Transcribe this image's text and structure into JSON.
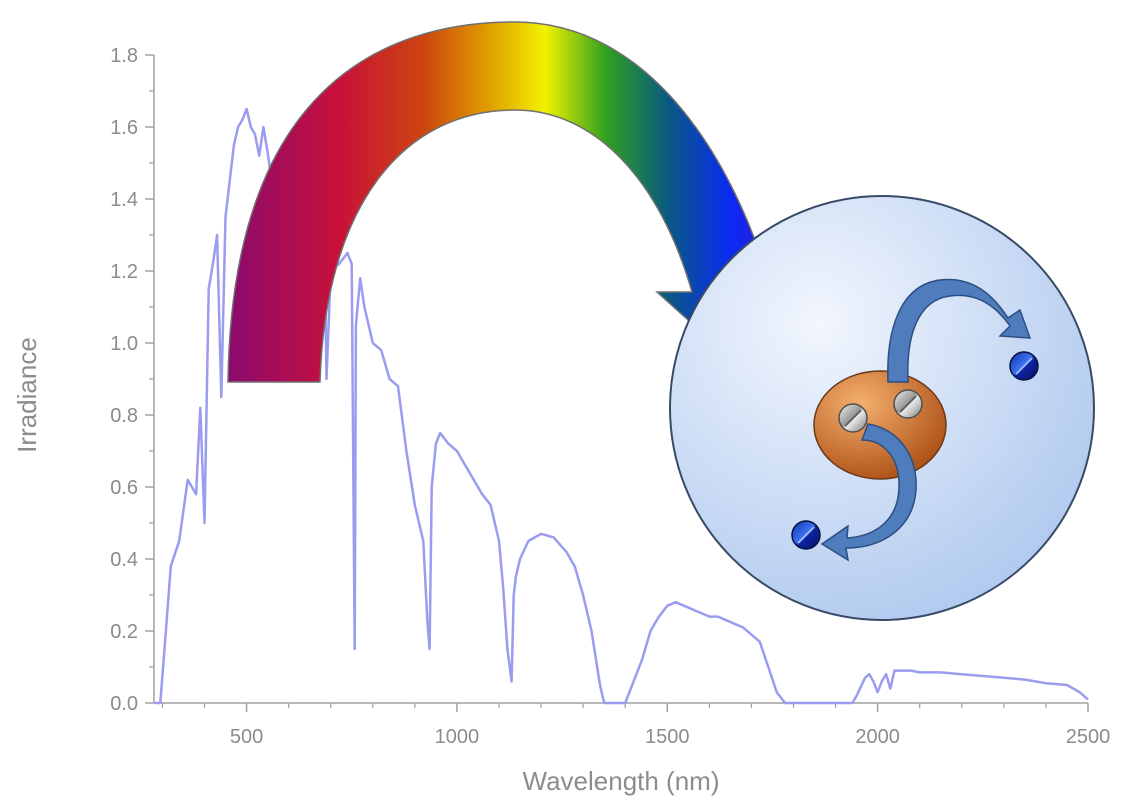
{
  "chart_data": {
    "type": "line",
    "title": "",
    "xlabel": "Wavelength (nm)",
    "ylabel": "Irradiance",
    "xlim": [
      280,
      2500
    ],
    "ylim": [
      0,
      1.8
    ],
    "x_ticks": [
      500,
      1000,
      1500,
      2000,
      2500
    ],
    "y_ticks": [
      "0.0",
      "0.2",
      "0.4",
      "0.6",
      "0.8",
      "1.0",
      "1.2",
      "1.4",
      "1.6",
      "1.8"
    ],
    "grid": false,
    "series": [
      {
        "color": "#9a9cf0",
        "x": [
          280,
          295,
          305,
          320,
          340,
          360,
          380,
          390,
          400,
          410,
          420,
          430,
          440,
          450,
          460,
          470,
          480,
          490,
          500,
          510,
          520,
          530,
          540,
          550,
          560,
          570,
          580,
          590,
          600,
          620,
          640,
          660,
          680,
          687,
          690,
          700,
          720,
          740,
          750,
          757,
          760,
          770,
          780,
          800,
          820,
          840,
          860,
          880,
          900,
          920,
          930,
          935,
          940,
          950,
          960,
          980,
          1000,
          1020,
          1040,
          1060,
          1080,
          1100,
          1110,
          1120,
          1130,
          1135,
          1140,
          1150,
          1170,
          1200,
          1230,
          1260,
          1280,
          1300,
          1320,
          1340,
          1350,
          1360,
          1380,
          1400,
          1420,
          1440,
          1460,
          1480,
          1500,
          1520,
          1540,
          1560,
          1580,
          1600,
          1620,
          1640,
          1660,
          1680,
          1700,
          1720,
          1740,
          1760,
          1780,
          1800,
          1820,
          1850,
          1900,
          1940,
          1950,
          1970,
          1980,
          1990,
          2000,
          2010,
          2020,
          2030,
          2040,
          2060,
          2080,
          2100,
          2150,
          2200,
          2250,
          2300,
          2350,
          2400,
          2450,
          2480,
          2500
        ],
        "y": [
          0.0,
          0.0,
          0.15,
          0.38,
          0.45,
          0.62,
          0.58,
          0.82,
          0.5,
          1.15,
          1.22,
          1.3,
          0.85,
          1.35,
          1.45,
          1.55,
          1.6,
          1.62,
          1.65,
          1.6,
          1.58,
          1.52,
          1.6,
          1.53,
          1.45,
          1.52,
          1.5,
          1.48,
          1.42,
          1.42,
          1.4,
          1.38,
          1.3,
          1.15,
          0.9,
          1.2,
          1.22,
          1.25,
          1.22,
          0.15,
          1.05,
          1.18,
          1.1,
          1.0,
          0.98,
          0.9,
          0.88,
          0.7,
          0.55,
          0.45,
          0.22,
          0.15,
          0.6,
          0.72,
          0.75,
          0.72,
          0.7,
          0.66,
          0.62,
          0.58,
          0.55,
          0.45,
          0.32,
          0.15,
          0.06,
          0.3,
          0.35,
          0.4,
          0.45,
          0.47,
          0.46,
          0.42,
          0.38,
          0.3,
          0.2,
          0.05,
          0.0,
          0.0,
          0.0,
          0.0,
          0.06,
          0.12,
          0.2,
          0.24,
          0.27,
          0.28,
          0.27,
          0.26,
          0.25,
          0.24,
          0.24,
          0.23,
          0.22,
          0.21,
          0.19,
          0.17,
          0.1,
          0.03,
          0.0,
          0.0,
          0.0,
          0.0,
          0.0,
          0.0,
          0.02,
          0.07,
          0.08,
          0.06,
          0.03,
          0.06,
          0.08,
          0.04,
          0.09,
          0.09,
          0.09,
          0.085,
          0.085,
          0.08,
          0.075,
          0.07,
          0.065,
          0.055,
          0.05,
          0.03,
          0.01
        ]
      }
    ]
  }
}
